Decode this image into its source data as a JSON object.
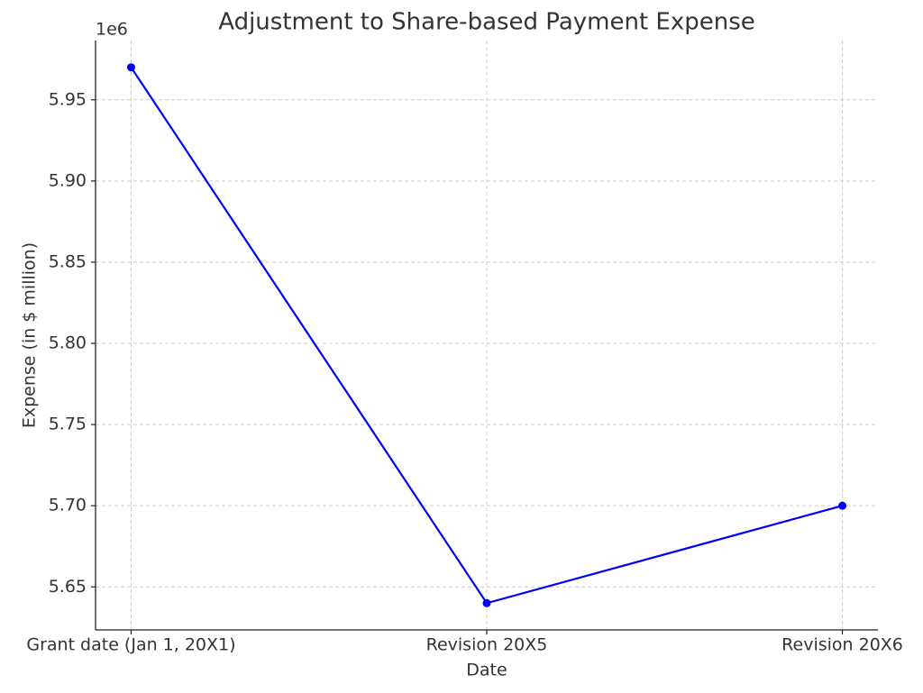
{
  "chart_data": {
    "type": "line",
    "title": "Adjustment to Share-based Payment Expense",
    "x_label": "Date",
    "y_label": "Expense (in $ million)",
    "y_offset_label": "1e6",
    "categories": [
      "Grant date (Jan 1, 20X1)",
      "Revision 20X5",
      "Revision 20X6"
    ],
    "series": [
      {
        "name": "Expense",
        "color": "#0000ff",
        "values": [
          5970000,
          5640000,
          5700000
        ]
      }
    ],
    "ylim": [
      5623500,
      5986500
    ],
    "yticks": [
      {
        "value": 5650000,
        "label": "5.65"
      },
      {
        "value": 5700000,
        "label": "5.70"
      },
      {
        "value": 5750000,
        "label": "5.75"
      },
      {
        "value": 5800000,
        "label": "5.80"
      },
      {
        "value": 5850000,
        "label": "5.85"
      },
      {
        "value": 5900000,
        "label": "5.90"
      },
      {
        "value": 5950000,
        "label": "5.95"
      }
    ],
    "grid": true
  }
}
